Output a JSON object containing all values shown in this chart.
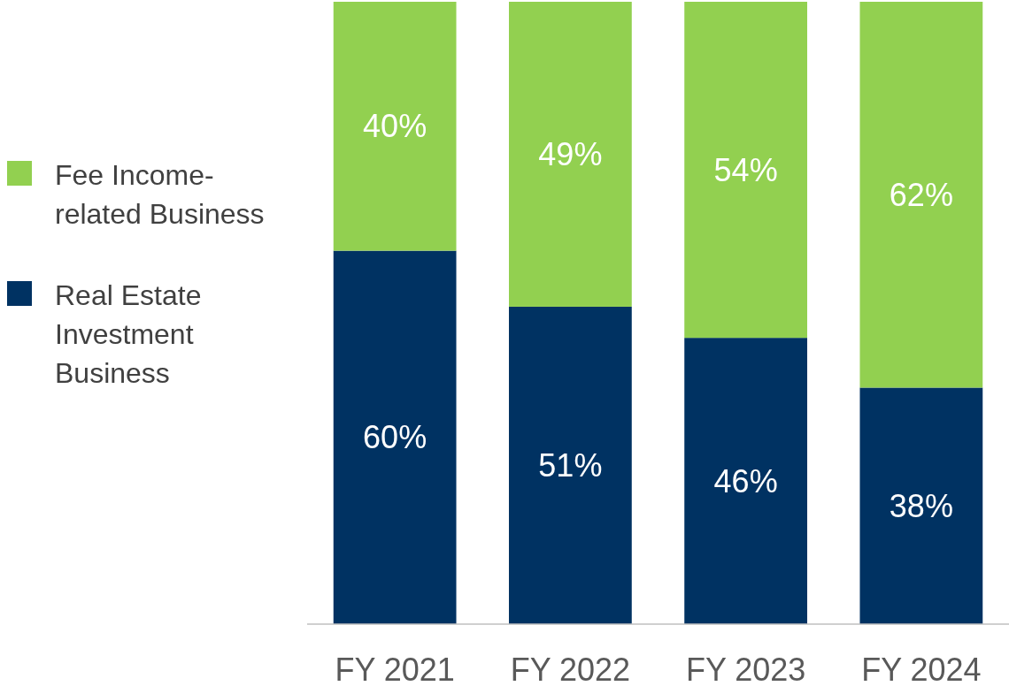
{
  "chart_data": {
    "type": "bar",
    "stacked": true,
    "categories": [
      "FY 2021",
      "FY 2022",
      "FY 2023",
      "FY 2024"
    ],
    "series": [
      {
        "name": "Real Estate Investment Business",
        "color": "#003262",
        "values": [
          60,
          51,
          46,
          38
        ],
        "value_labels": [
          "60%",
          "51%",
          "46%",
          "38%"
        ]
      },
      {
        "name": "Fee Income-related Business",
        "color": "#92d050",
        "values": [
          40,
          49,
          54,
          62
        ],
        "value_labels": [
          "40%",
          "49%",
          "54%",
          "62%"
        ]
      }
    ],
    "legend": "left",
    "tick_labels": "x"
  }
}
